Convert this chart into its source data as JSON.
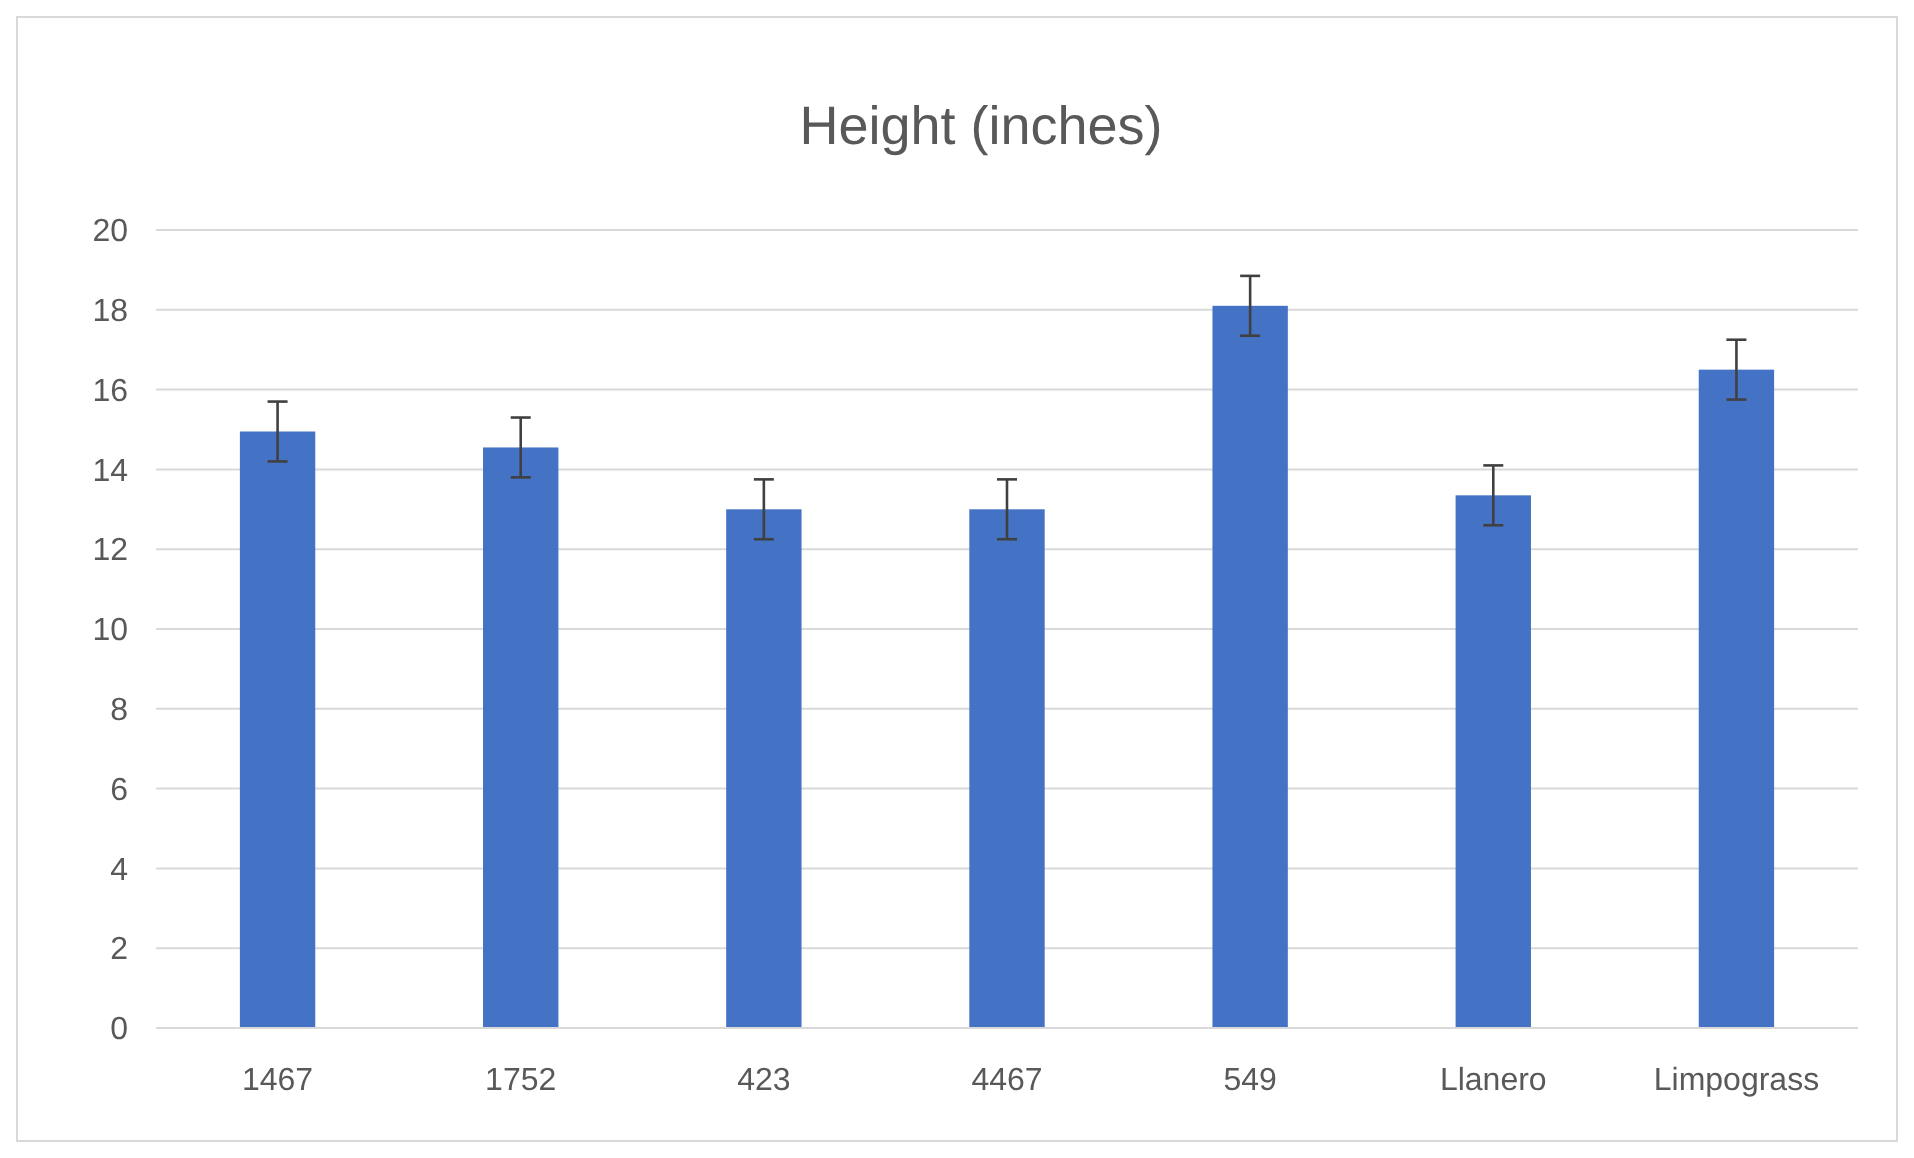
{
  "chart_data": {
    "type": "bar",
    "title": "Height (inches)",
    "categories": [
      "1467",
      "1752",
      "423",
      "4467",
      "549",
      "Llanero",
      "Limpograss"
    ],
    "values": [
      14.95,
      14.55,
      13.0,
      13.0,
      18.1,
      13.35,
      16.5
    ],
    "errors": [
      0.75,
      0.75,
      0.75,
      0.75,
      0.75,
      0.75,
      0.75
    ],
    "color": "#4472c4",
    "ylim": [
      0,
      20
    ],
    "yticks": [
      0,
      2,
      4,
      6,
      8,
      10,
      12,
      14,
      16,
      18,
      20
    ],
    "grid": "y"
  }
}
